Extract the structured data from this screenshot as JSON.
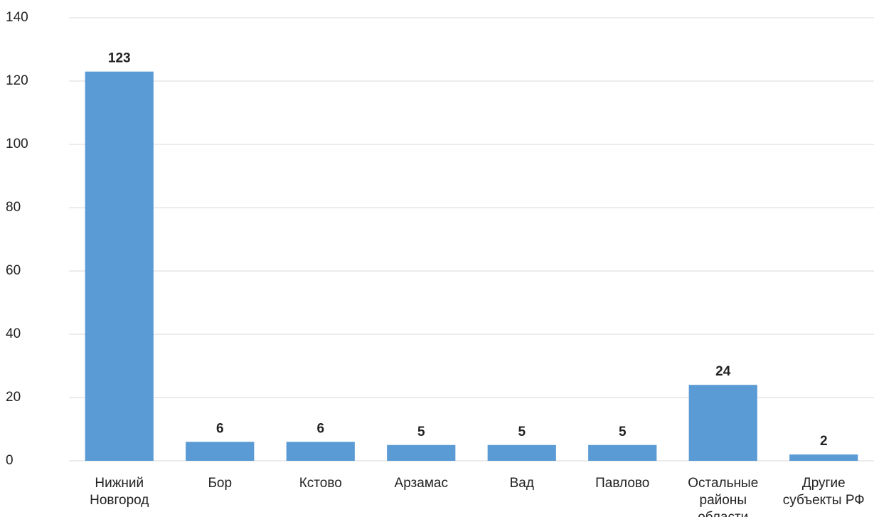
{
  "chart_data": {
    "type": "bar",
    "categories": [
      "Нижний Новгород",
      "Бор",
      "Кстово",
      "Арзамас",
      "Вад",
      "Павлово",
      "Остальные районы области",
      "Другие субъекты РФ"
    ],
    "values": [
      123,
      6,
      6,
      5,
      5,
      5,
      24,
      2
    ],
    "color": "#5b9bd5",
    "ylim": [
      0,
      140
    ],
    "yticks": [
      0,
      20,
      40,
      60,
      80,
      100,
      120,
      140
    ],
    "grid": true
  }
}
